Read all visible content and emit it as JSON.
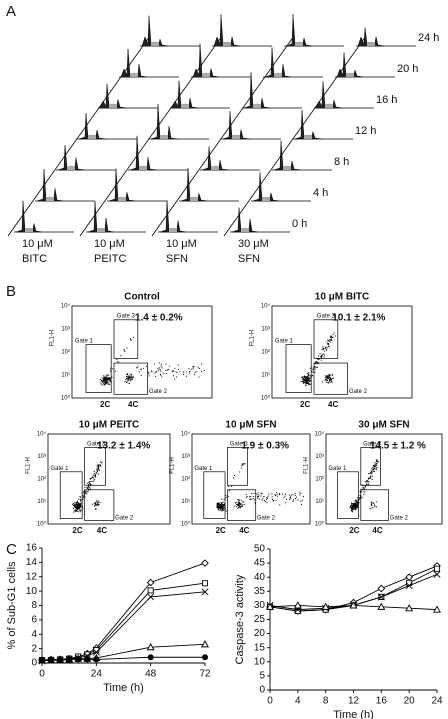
{
  "panel_a": {
    "label": "A",
    "times": [
      "0 h",
      "4 h",
      "8 h",
      "12 h",
      "16 h",
      "20 h",
      "24 h"
    ],
    "treatments": [
      {
        "dose": "10 μM",
        "compound": "BITC"
      },
      {
        "dose": "10 μM",
        "compound": "PEITC"
      },
      {
        "dose": "10 μM",
        "compound": "SFN"
      },
      {
        "dose": "30 μM",
        "compound": "SFN"
      }
    ]
  },
  "panel_b": {
    "label": "B",
    "y_axis_label": "FL1-H",
    "y_ticks": [
      "10⁰",
      "10¹",
      "10²",
      "10³",
      "10⁴"
    ],
    "gates": [
      "Gate 1",
      "Gate 2",
      "Gate 3"
    ],
    "x_markers": [
      "2C",
      "4C"
    ],
    "plots": [
      {
        "title": "Control",
        "value": "1.4 ± 0.2%"
      },
      {
        "title": "10 μM BITC",
        "value": "10.1 ± 2.1%"
      },
      {
        "title": "10 μM PEITC",
        "value": "13.2 ± 1.4%"
      },
      {
        "title": "10 μM SFN",
        "value": "1.9 ± 0.3%"
      },
      {
        "title": "30 μM SFN",
        "value": "14.5 ± 1.2 %"
      }
    ]
  },
  "panel_c": {
    "label": "C"
  },
  "chart_data": [
    {
      "type": "line",
      "ylabel": "% of Sub-G1 cells",
      "xlabel": "Time (h)",
      "x": [
        0,
        4,
        8,
        12,
        16,
        20,
        24,
        48,
        72
      ],
      "xlim": [
        0,
        72
      ],
      "xticks": [
        0,
        24,
        48,
        72
      ],
      "ylim": [
        0,
        16
      ],
      "yticks": [
        0,
        2,
        4,
        6,
        8,
        10,
        12,
        14,
        16
      ],
      "series": [
        {
          "marker": "diamond",
          "color": "#000000",
          "values": [
            0.4,
            0.5,
            0.5,
            0.6,
            0.8,
            1.3,
            2.1,
            11.2,
            13.9
          ]
        },
        {
          "marker": "square",
          "color": "#000000",
          "values": [
            0.4,
            0.4,
            0.5,
            0.6,
            0.9,
            1.2,
            1.8,
            10.1,
            11.1
          ]
        },
        {
          "marker": "x",
          "color": "#000000",
          "values": [
            0.3,
            0.4,
            0.4,
            0.5,
            0.7,
            1.0,
            1.5,
            9.2,
            9.9
          ]
        },
        {
          "marker": "triangle",
          "color": "#000000",
          "values": [
            0.4,
            0.4,
            0.5,
            0.5,
            0.6,
            0.6,
            0.7,
            2.2,
            2.6
          ]
        },
        {
          "marker": "circle",
          "color": "#000000",
          "values": [
            0.4,
            0.4,
            0.4,
            0.5,
            0.5,
            0.5,
            0.5,
            0.8,
            0.8
          ]
        }
      ]
    },
    {
      "type": "line",
      "ylabel": "Caspase-3 activity",
      "xlabel": "Time (h)",
      "x": [
        0,
        4,
        8,
        12,
        16,
        20,
        24
      ],
      "xlim": [
        0,
        24
      ],
      "xticks": [
        0,
        4,
        8,
        12,
        16,
        20,
        24
      ],
      "ylim": [
        0,
        50
      ],
      "yticks": [
        0,
        5,
        10,
        15,
        20,
        25,
        30,
        35,
        40,
        45,
        50
      ],
      "series": [
        {
          "marker": "diamond",
          "color": "#000000",
          "values": [
            29.5,
            28,
            28.5,
            31,
            36,
            40,
            44
          ]
        },
        {
          "marker": "square",
          "color": "#000000",
          "values": [
            29.5,
            28,
            28.5,
            30,
            33,
            38,
            43
          ]
        },
        {
          "marker": "x",
          "color": "#000000",
          "values": [
            30,
            28.5,
            29,
            30,
            33,
            37,
            41
          ]
        },
        {
          "marker": "triangle",
          "color": "#000000",
          "values": [
            29.5,
            30,
            29.5,
            30,
            29.5,
            29,
            28.5
          ]
        }
      ]
    }
  ]
}
